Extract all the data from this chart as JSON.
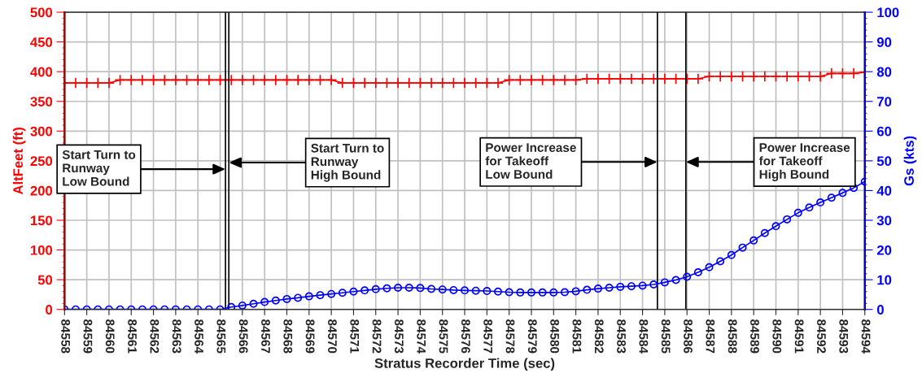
{
  "chart_data": {
    "type": "line",
    "xlabel": "Stratus Recorder Time (sec)",
    "ylabel": "AltFeet (ft)",
    "y2label": "Gs (kts)",
    "x": [
      84558,
      84558.5,
      84559,
      84559.5,
      84560,
      84560.5,
      84561,
      84561.5,
      84562,
      84562.5,
      84563,
      84563.5,
      84564,
      84564.5,
      84565,
      84565.5,
      84566,
      84566.5,
      84567,
      84567.5,
      84568,
      84568.5,
      84569,
      84569.5,
      84570,
      84570.5,
      84571,
      84571.5,
      84572,
      84572.5,
      84573,
      84573.5,
      84574,
      84574.5,
      84575,
      84575.5,
      84576,
      84576.5,
      84577,
      84577.5,
      84578,
      84578.5,
      84579,
      84579.5,
      84580,
      84580.5,
      84581,
      84581.5,
      84582,
      84582.5,
      84583,
      84583.5,
      84584,
      84584.5,
      84585,
      84585.5,
      84586,
      84586.5,
      84587,
      84587.5,
      84588,
      84588.5,
      84589,
      84589.5,
      84590,
      84590.5,
      84591,
      84591.5,
      84592,
      84592.5,
      84593,
      84593.5,
      84594
    ],
    "series": [
      {
        "color": "#ff0000",
        "marker": "cross",
        "values": [
          381,
          381,
          381,
          381,
          381,
          386,
          386,
          386,
          386,
          386,
          386,
          386,
          386,
          386,
          386,
          386,
          386,
          386,
          386,
          386,
          386,
          386,
          386,
          386,
          386,
          381,
          381,
          381,
          381,
          381,
          381,
          381,
          381,
          381,
          381,
          381,
          381,
          381,
          381,
          381,
          386,
          386,
          386,
          386,
          386,
          386,
          386,
          388,
          388,
          388,
          388,
          388,
          388,
          388,
          388,
          388,
          388,
          388,
          392,
          392,
          392,
          392,
          392,
          392,
          392,
          392,
          392,
          392,
          392,
          397,
          397,
          397,
          399
        ]
      },
      {
        "color": "#0000ff",
        "marker": "circle",
        "axis": "y2",
        "values": [
          0,
          0,
          0,
          0,
          0,
          0,
          0,
          0,
          0,
          0,
          0,
          0,
          0,
          0,
          0,
          0.8,
          1.3,
          1.9,
          2.5,
          3.0,
          3.5,
          3.9,
          4.4,
          4.8,
          5.2,
          5.6,
          6.0,
          6.4,
          6.8,
          7.1,
          7.3,
          7.3,
          7.2,
          6.9,
          6.7,
          6.5,
          6.4,
          6.3,
          6.2,
          6.0,
          5.8,
          5.7,
          5.7,
          5.7,
          5.7,
          5.8,
          6.1,
          6.6,
          7.0,
          7.3,
          7.6,
          7.8,
          8.0,
          8.4,
          9.1,
          9.9,
          11.0,
          12.5,
          14.2,
          16.2,
          18.3,
          20.8,
          23.2,
          25.7,
          28.0,
          30.3,
          32.5,
          34.3,
          36.0,
          37.6,
          39.2,
          40.9,
          43.0
        ]
      }
    ],
    "xlim": [
      84558,
      84594
    ],
    "xticks": [
      84558,
      84559,
      84560,
      84561,
      84562,
      84563,
      84564,
      84565,
      84566,
      84567,
      84568,
      84569,
      84570,
      84571,
      84572,
      84573,
      84574,
      84575,
      84576,
      84577,
      84578,
      84579,
      84580,
      84581,
      84582,
      84583,
      84584,
      84585,
      84586,
      84587,
      84588,
      84589,
      84590,
      84591,
      84592,
      84593,
      84594
    ],
    "ylim": [
      0,
      500
    ],
    "yticks": [
      0,
      50,
      100,
      150,
      200,
      250,
      300,
      350,
      400,
      450,
      500
    ],
    "y2lim": [
      0,
      100
    ],
    "y2ticks": [
      0,
      10,
      20,
      30,
      40,
      50,
      60,
      70,
      80,
      90,
      100
    ],
    "ref_lines": [
      {
        "axis": "x",
        "value": 84565.24,
        "color": "#000000"
      },
      {
        "axis": "x",
        "value": 84565.39,
        "color": "#000000"
      },
      {
        "axis": "x",
        "value": 84584.67,
        "color": "#000000"
      },
      {
        "axis": "x",
        "value": 84585.95,
        "color": "#000000"
      }
    ],
    "annotations": [
      {
        "text": "Start Turn to\nRunway\nLow Bound",
        "x": 84565.24,
        "y": 236
      },
      {
        "text": "Start Turn to\nRunway\nHigh Bound",
        "x": 84565.39,
        "y": 247
      },
      {
        "text": "Power Increase\nfor Takeoff\nLow Bound",
        "x": 84584.67,
        "y": 248
      },
      {
        "text": "Power Increase\nfor Takeoff\nHigh Bound",
        "x": 84585.95,
        "y": 248
      }
    ],
    "grid": true,
    "legend": false
  }
}
